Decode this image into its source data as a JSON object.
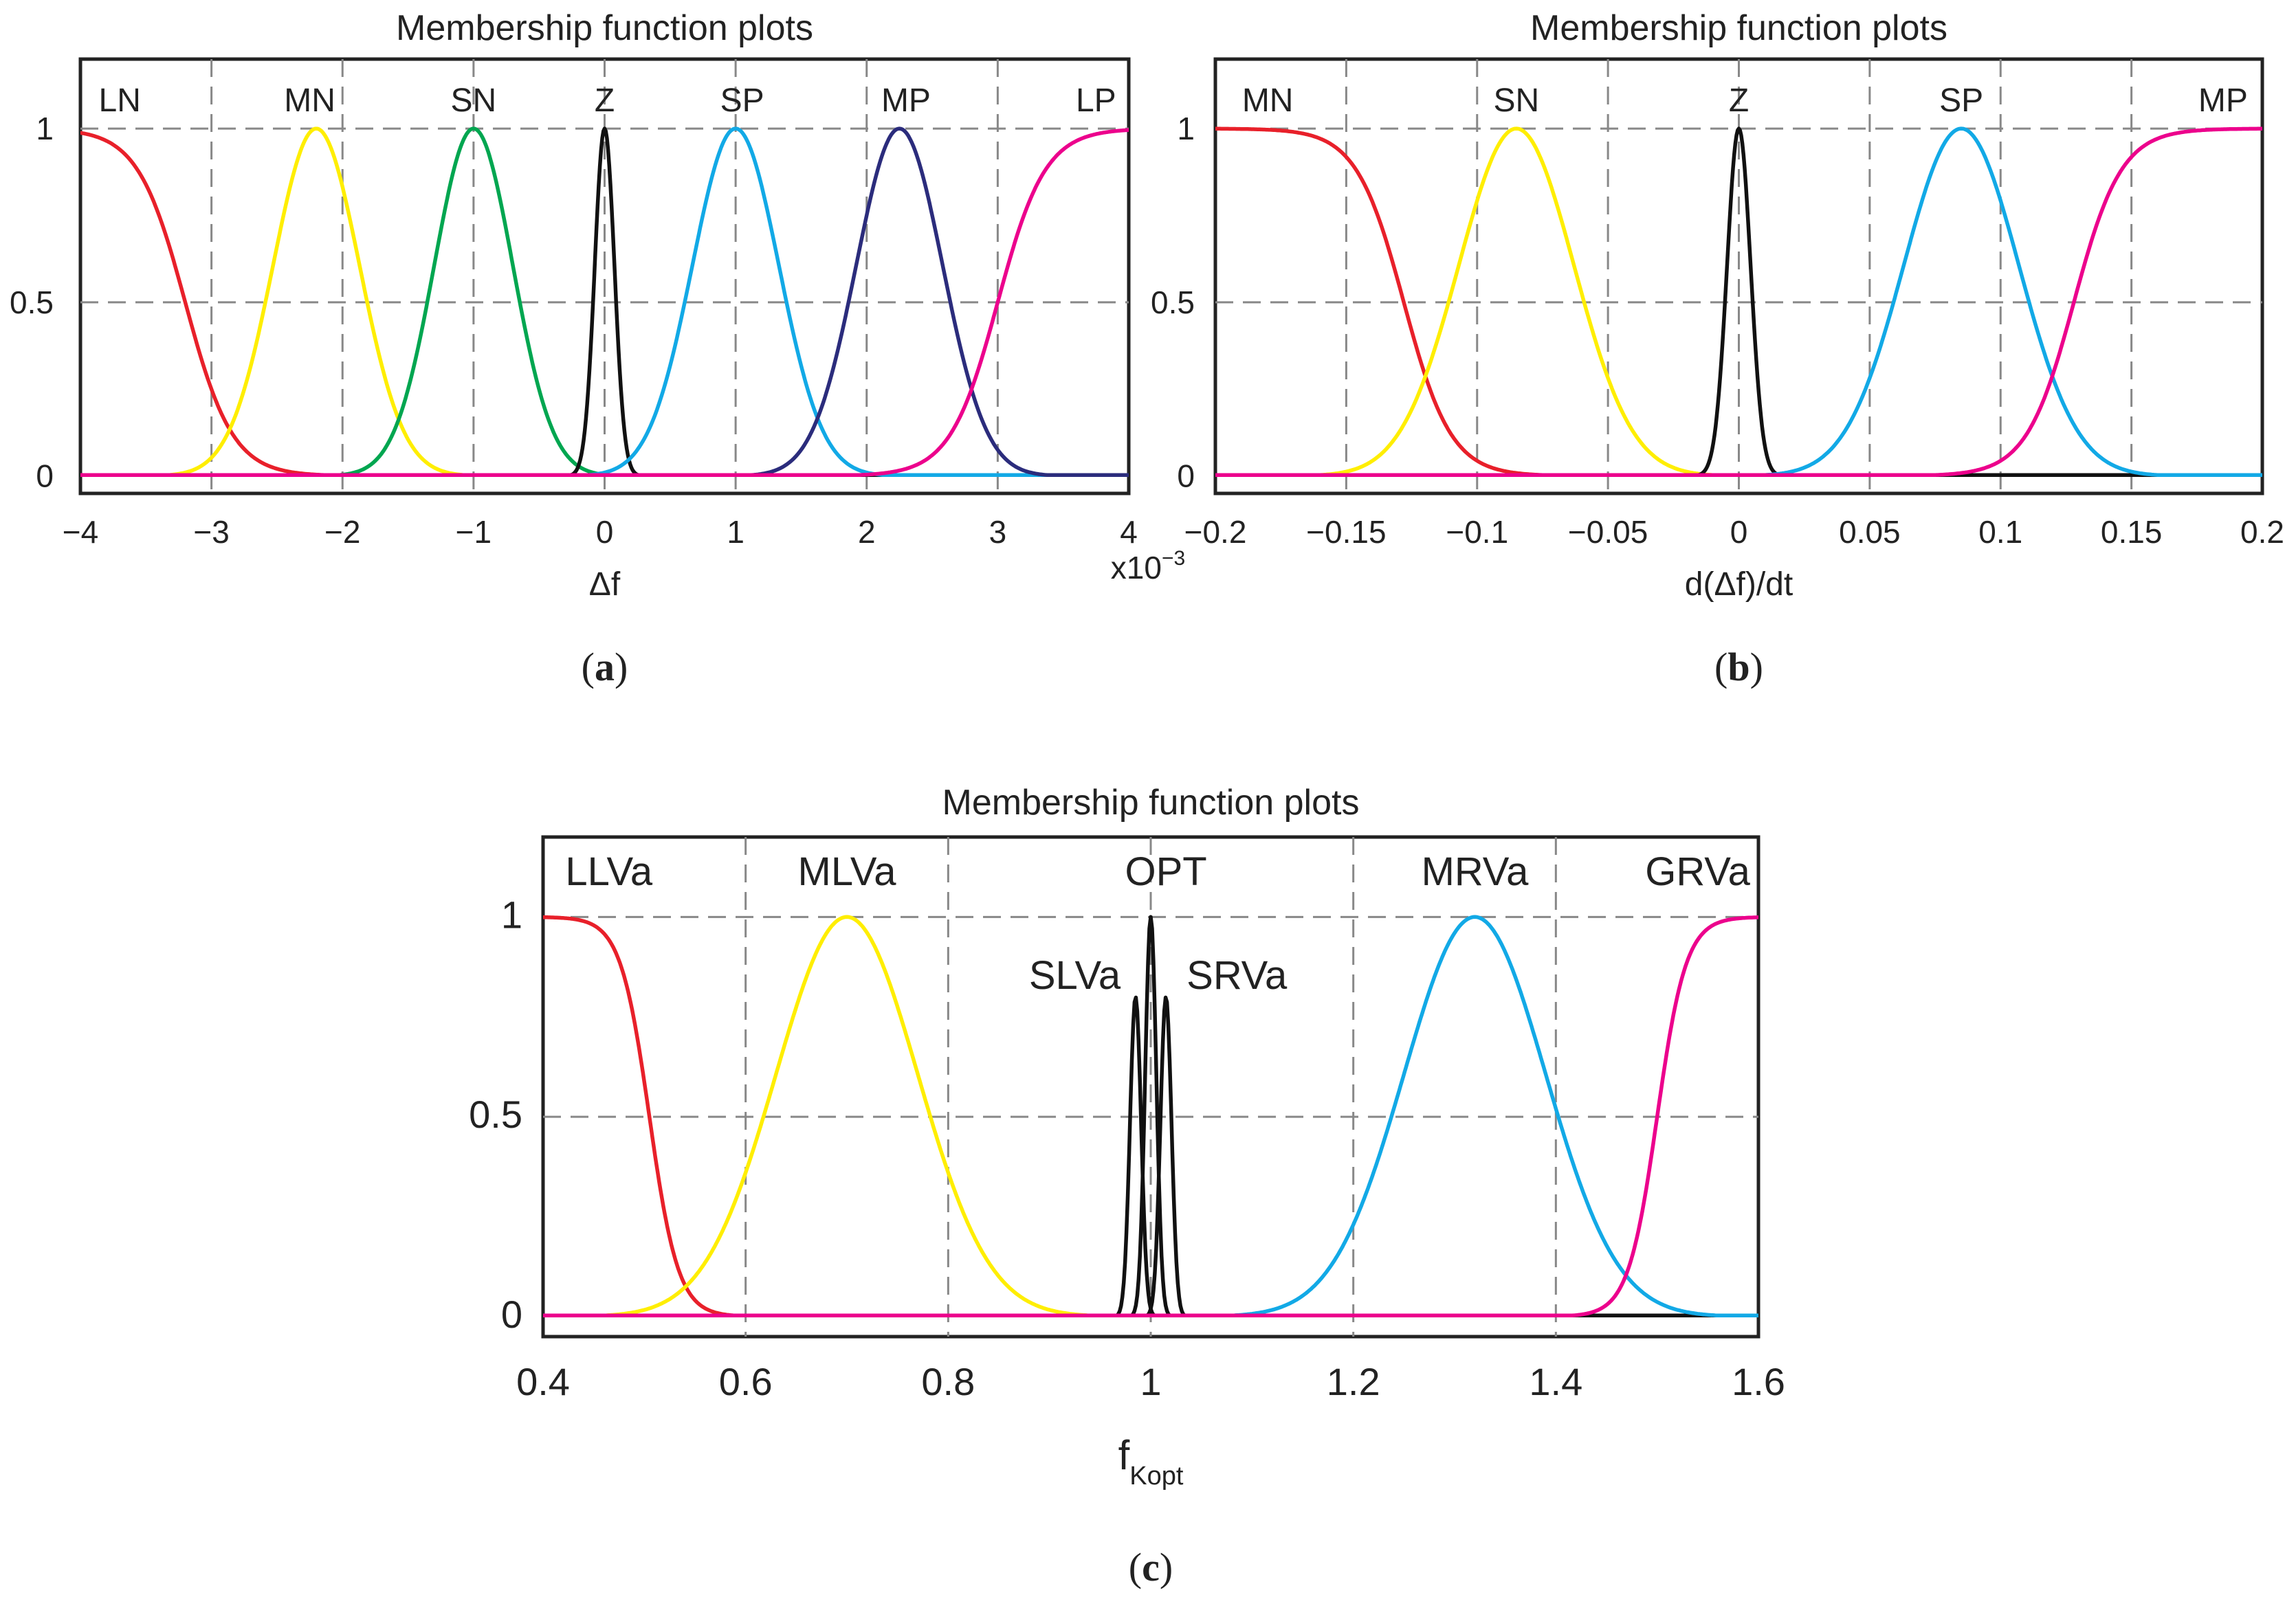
{
  "colors": {
    "red": "#e8202a",
    "yellow": "#ffee00",
    "green": "#00a650",
    "black": "#111111",
    "cyan": "#12a9e6",
    "navy": "#2b2c7c",
    "magenta": "#ec008c",
    "grid": "#888888",
    "axis": "#222222"
  },
  "chart_data": [
    {
      "id": "a",
      "type": "line",
      "title": "Membership function plots",
      "xlabel": "Δf",
      "ylabel": "",
      "x_multiplier": "x10",
      "x_multiplier_exp": "−3",
      "xlim": [
        -4,
        4
      ],
      "ylim": [
        -0.05,
        1.2
      ],
      "xticks": [
        -4,
        -3,
        -2,
        -1,
        0,
        1,
        2,
        3,
        4
      ],
      "xtick_labels": [
        "−4",
        "−3",
        "−2",
        "−1",
        "0",
        "1",
        "2",
        "3",
        "4"
      ],
      "yticks": [
        0,
        0.5,
        1
      ],
      "ytick_labels": [
        "0",
        "0.5",
        "1"
      ],
      "grid": true,
      "caption": "a",
      "series": [
        {
          "name": "LN",
          "color": "red",
          "shape": "z",
          "x": [
            -4,
            -3.75,
            -3.6,
            -3.45,
            -3.3,
            -3.15,
            -3.0,
            -2.85,
            -2.7,
            -2.55,
            -2.4,
            -4.0
          ],
          "values": [
            1,
            1,
            1,
            0.97,
            0.85,
            0.6,
            0.33,
            0.13,
            0.03,
            0.005,
            0,
            0
          ],
          "params": {
            "a": -3.2,
            "k": 5.5,
            "hold": -3.5
          }
        },
        {
          "name": "MN",
          "color": "yellow",
          "shape": "gauss",
          "params": {
            "center": -2.2,
            "sigma": 0.33
          }
        },
        {
          "name": "SN",
          "color": "green",
          "shape": "gauss",
          "params": {
            "center": -1.0,
            "sigma": 0.3
          }
        },
        {
          "name": "Z",
          "color": "black",
          "shape": "gauss",
          "params": {
            "center": 0.0,
            "sigma": 0.075
          }
        },
        {
          "name": "SP",
          "color": "cyan",
          "shape": "gauss",
          "params": {
            "center": 1.0,
            "sigma": 0.33
          }
        },
        {
          "name": "MP",
          "color": "navy",
          "shape": "gauss",
          "params": {
            "center": 2.25,
            "sigma": 0.33
          }
        },
        {
          "name": "LP",
          "color": "magenta",
          "shape": "s",
          "params": {
            "a": 3.0,
            "k": 5.5,
            "hold": 3.6
          }
        }
      ],
      "mf_labels": [
        {
          "text": "LN",
          "x": -3.7
        },
        {
          "text": "MN",
          "x": -2.25
        },
        {
          "text": "SN",
          "x": -1.0
        },
        {
          "text": "Z",
          "x": 0.0
        },
        {
          "text": "SP",
          "x": 1.05
        },
        {
          "text": "MP",
          "x": 2.3
        },
        {
          "text": "LP",
          "x": 3.75
        }
      ]
    },
    {
      "id": "b",
      "type": "line",
      "title": "Membership function plots",
      "xlabel": "d(Δf)/dt",
      "ylabel": "",
      "xlim": [
        -0.2,
        0.2
      ],
      "ylim": [
        -0.05,
        1.2
      ],
      "xticks": [
        -0.2,
        -0.15,
        -0.1,
        -0.05,
        0,
        0.05,
        0.1,
        0.15,
        0.2
      ],
      "xtick_labels": [
        "−0.2",
        "−0.15",
        "−0.1",
        "−0.05",
        "0",
        "0.05",
        "0.1",
        "0.15",
        "0.2"
      ],
      "yticks": [
        0,
        0.5,
        1
      ],
      "ytick_labels": [
        "0",
        "0.5",
        "1"
      ],
      "grid": true,
      "caption": "b",
      "series": [
        {
          "name": "MN",
          "color": "red",
          "shape": "z",
          "params": {
            "a": -0.128,
            "k": 110,
            "hold": -0.165
          }
        },
        {
          "name": "SN",
          "color": "yellow",
          "shape": "gauss",
          "params": {
            "center": -0.085,
            "sigma": 0.022
          }
        },
        {
          "name": "Z",
          "color": "black",
          "shape": "gauss",
          "params": {
            "center": 0.0,
            "sigma": 0.0045
          }
        },
        {
          "name": "SP",
          "color": "cyan",
          "shape": "gauss",
          "params": {
            "center": 0.085,
            "sigma": 0.022
          }
        },
        {
          "name": "MP",
          "color": "magenta",
          "shape": "s",
          "params": {
            "a": 0.128,
            "k": 110,
            "hold": 0.165
          }
        }
      ],
      "mf_labels": [
        {
          "text": "MN",
          "x": -0.18
        },
        {
          "text": "SN",
          "x": -0.085
        },
        {
          "text": "Z",
          "x": 0.0
        },
        {
          "text": "SP",
          "x": 0.085
        },
        {
          "text": "MP",
          "x": 0.185
        }
      ]
    },
    {
      "id": "c",
      "type": "line",
      "title": "Membership function plots",
      "xlabel": "f",
      "xlabel_sub": "Kopt",
      "ylabel": "",
      "xlim": [
        0.4,
        1.6
      ],
      "ylim": [
        -0.05,
        1.2
      ],
      "xticks": [
        0.4,
        0.6,
        0.8,
        1.0,
        1.2,
        1.4,
        1.6
      ],
      "xtick_labels": [
        "0.4",
        "0.6",
        "0.8",
        "1",
        "1.2",
        "1.4",
        "1.6"
      ],
      "yticks": [
        0,
        0.5,
        1
      ],
      "ytick_labels": [
        "0",
        "0.5",
        "1"
      ],
      "grid": true,
      "caption": "c",
      "series": [
        {
          "name": "LLVa",
          "color": "red",
          "shape": "z",
          "params": {
            "a": 0.505,
            "k": 70,
            "hold": 0.455
          }
        },
        {
          "name": "MLVa",
          "color": "yellow",
          "shape": "gauss",
          "params": {
            "center": 0.7,
            "sigma": 0.07
          }
        },
        {
          "name": "SLVa",
          "color": "black",
          "shape": "gauss",
          "params": {
            "center": 0.985,
            "sigma": 0.0055,
            "peak": 0.8
          }
        },
        {
          "name": "OPT",
          "color": "black",
          "shape": "gauss",
          "params": {
            "center": 1.0,
            "sigma": 0.0055,
            "peak": 1.0
          }
        },
        {
          "name": "SRVa",
          "color": "black",
          "shape": "gauss",
          "params": {
            "center": 1.015,
            "sigma": 0.0055,
            "peak": 0.8
          }
        },
        {
          "name": "MRVa",
          "color": "cyan",
          "shape": "gauss",
          "params": {
            "center": 1.32,
            "sigma": 0.07
          }
        },
        {
          "name": "GRVa",
          "color": "magenta",
          "shape": "s",
          "params": {
            "a": 1.5,
            "k": 70,
            "hold": 1.545
          }
        }
      ],
      "mf_labels": [
        {
          "text": "LLVa",
          "x": 0.465,
          "y": 1.08
        },
        {
          "text": "MLVa",
          "x": 0.7,
          "y": 1.08
        },
        {
          "text": "OPT",
          "x": 1.015,
          "y": 1.08
        },
        {
          "text": "SLVa",
          "x": 0.925,
          "y": 0.82
        },
        {
          "text": "SRVa",
          "x": 1.085,
          "y": 0.82
        },
        {
          "text": "MRVa",
          "x": 1.32,
          "y": 1.08
        },
        {
          "text": "GRVa",
          "x": 1.54,
          "y": 1.08
        }
      ]
    }
  ]
}
